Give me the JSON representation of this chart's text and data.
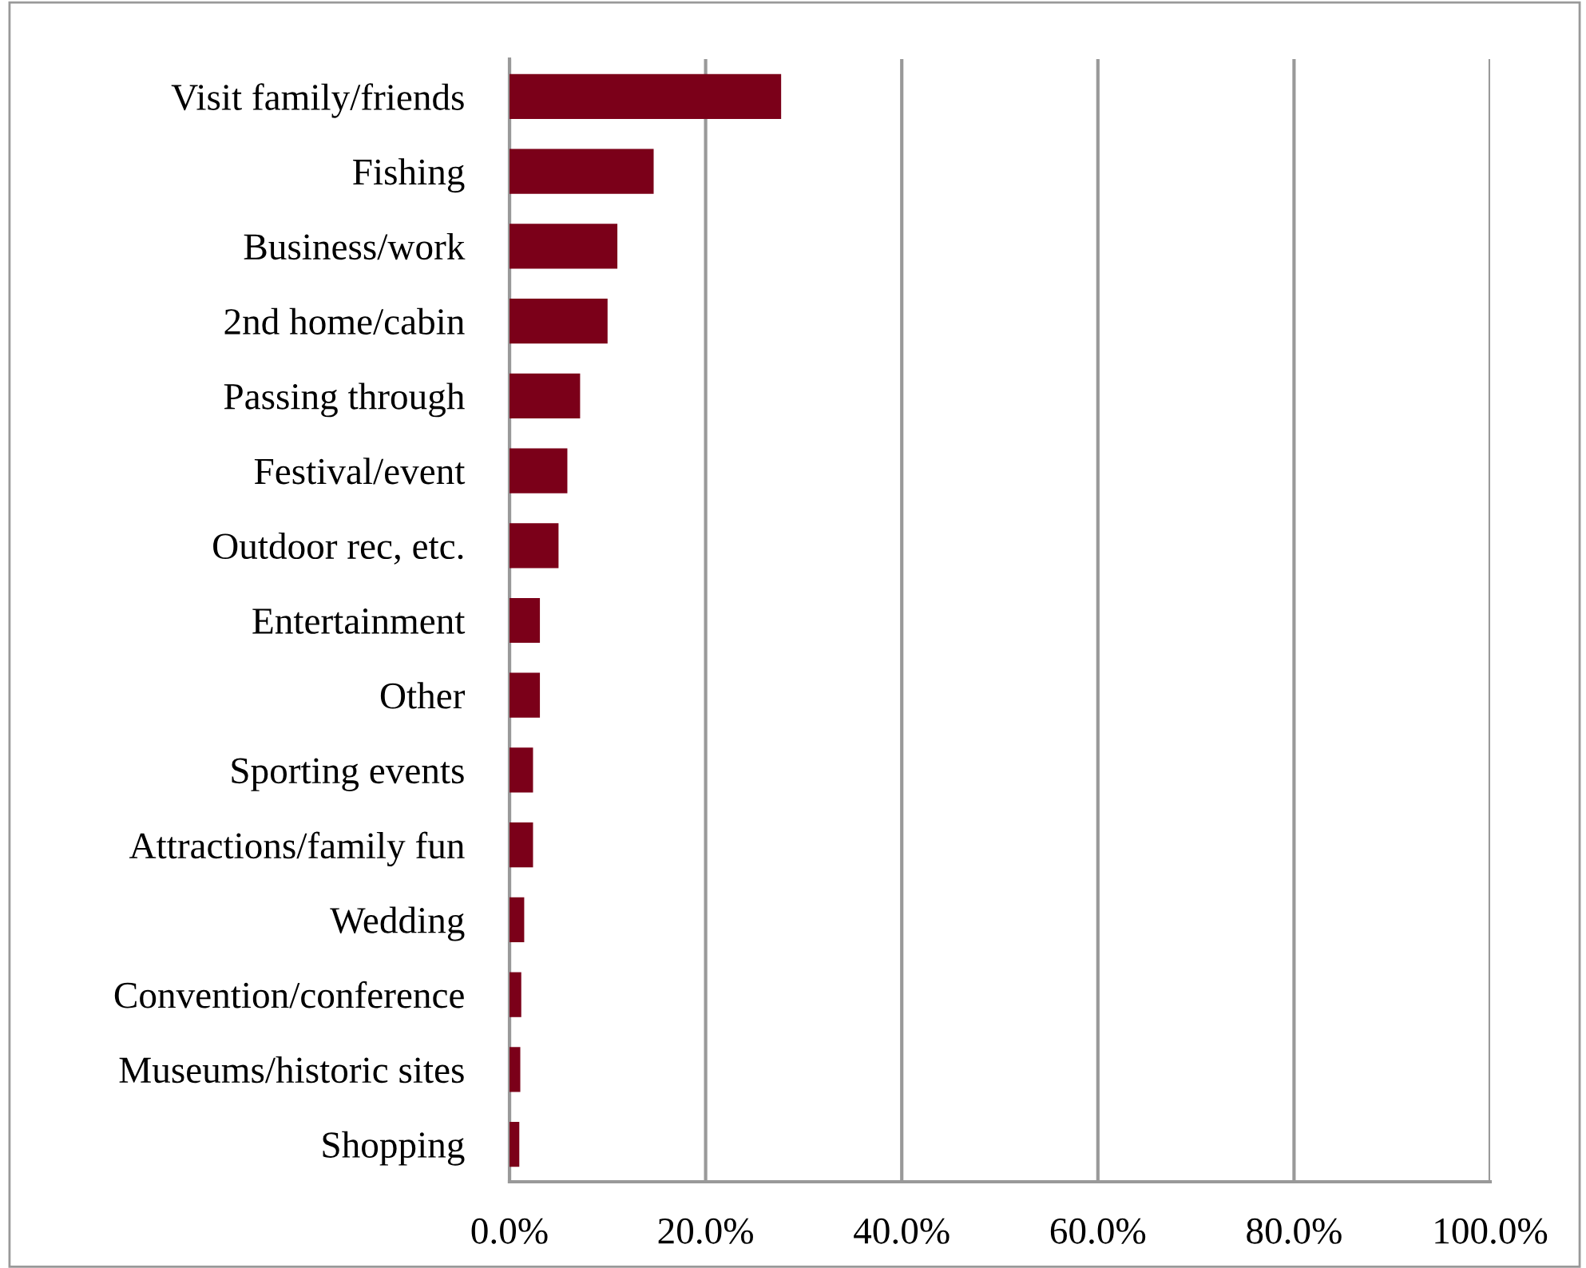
{
  "chart_data": {
    "type": "bar",
    "orientation": "horizontal",
    "categories": [
      "Visit family/friends",
      "Fishing",
      "Business/work",
      "2nd home/cabin",
      "Passing through",
      "Festival/event",
      "Outdoor rec, etc.",
      "Entertainment",
      "Other",
      "Sporting events",
      "Attractions/family fun",
      "Wedding",
      "Convention/conference",
      "Museums/historic sites",
      "Shopping"
    ],
    "values": [
      27.7,
      14.7,
      11.0,
      10.0,
      7.2,
      5.9,
      5.0,
      3.1,
      3.1,
      2.4,
      2.4,
      1.5,
      1.2,
      1.1,
      1.0
    ],
    "color": "#7b0019",
    "xlim": [
      0,
      100
    ],
    "xticks": [
      {
        "value": 0,
        "label": "0.0%"
      },
      {
        "value": 20,
        "label": "20.0%"
      },
      {
        "value": 40,
        "label": "40.0%"
      },
      {
        "value": 60,
        "label": "60.0%"
      },
      {
        "value": 80,
        "label": "80.0%"
      },
      {
        "value": 100,
        "label": "100.0%"
      }
    ],
    "grid": "x",
    "legend": false
  }
}
